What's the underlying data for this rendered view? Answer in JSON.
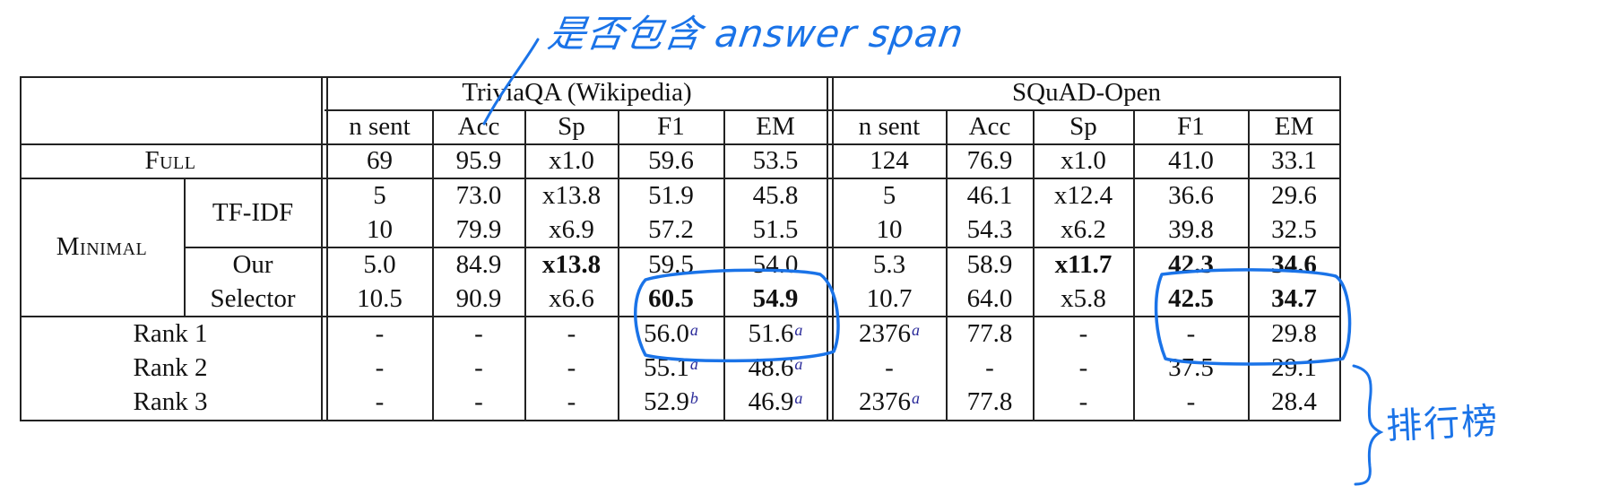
{
  "datasets": {
    "left": "TriviaQA (Wikipedia)",
    "right": "SQuAD-Open"
  },
  "columns": [
    "n sent",
    "Acc",
    "Sp",
    "F1",
    "EM",
    "n sent",
    "Acc",
    "Sp",
    "F1",
    "EM"
  ],
  "rows": {
    "full": {
      "label": "Full",
      "cells": [
        "69",
        "95.9",
        "x1.0",
        "59.6",
        "53.5",
        "124",
        "76.9",
        "x1.0",
        "41.0",
        "33.1"
      ]
    },
    "minimal": {
      "label": "Minimal",
      "tfidf": {
        "label": "TF-IDF",
        "r1": [
          "5",
          "73.0",
          "x13.8",
          "51.9",
          "45.8",
          "5",
          "46.1",
          "x12.4",
          "36.6",
          "29.6"
        ],
        "r2": [
          "10",
          "79.9",
          "x6.9",
          "57.2",
          "51.5",
          "10",
          "54.3",
          "x6.2",
          "39.8",
          "32.5"
        ]
      },
      "selector": {
        "label1": "Our",
        "label2": "Selector",
        "r1": [
          "5.0",
          "84.9",
          "x13.8",
          "59.5",
          "54.0",
          "5.3",
          "58.9",
          "x11.7",
          "42.3",
          "34.6"
        ],
        "r2": [
          "10.5",
          "90.9",
          "x6.6",
          "60.5",
          "54.9",
          "10.7",
          "64.0",
          "x5.8",
          "42.5",
          "34.7"
        ]
      }
    },
    "rank1": {
      "label": "Rank 1",
      "cells": [
        "-",
        "-",
        "-",
        "56.0",
        "51.6",
        "2376",
        "77.8",
        "-",
        "-",
        "29.8"
      ]
    },
    "rank2": {
      "label": "Rank 2",
      "cells": [
        "-",
        "-",
        "-",
        "55.1",
        "48.6",
        "-",
        "-",
        "-",
        "37.5",
        "29.1"
      ]
    },
    "rank3": {
      "label": "Rank 3",
      "cells": [
        "-",
        "-",
        "-",
        "52.9",
        "46.9",
        "2376",
        "77.8",
        "-",
        "-",
        "28.4"
      ]
    }
  },
  "footnote_marks": {
    "a": "a",
    "b": "b"
  },
  "annotations": {
    "top_note": "是否包含 answer span",
    "side_note": "排行榜",
    "color": "#1a73e8"
  }
}
